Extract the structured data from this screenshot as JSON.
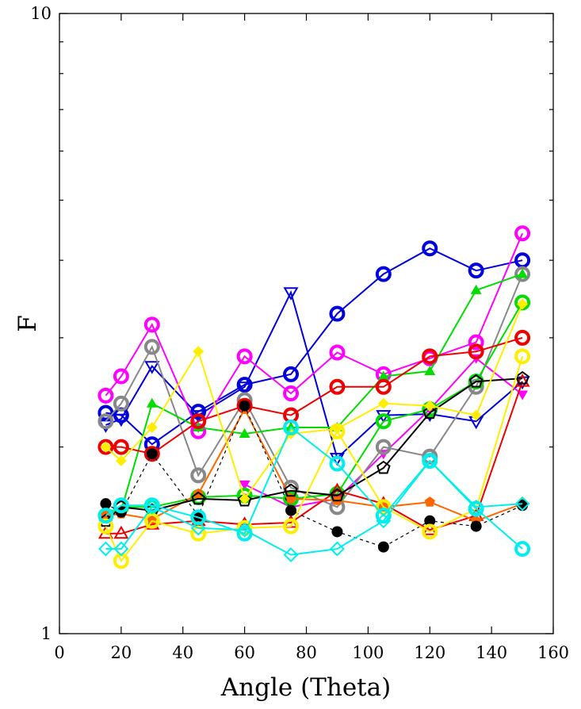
{
  "chart_data": {
    "type": "line",
    "title": "",
    "xlabel": "Angle (Theta)",
    "ylabel": "F",
    "xlim": [
      0,
      160
    ],
    "ylim": [
      1,
      10
    ],
    "yscale": "log",
    "grid": false,
    "legend": "none",
    "x_ticks": [
      "0",
      "20",
      "40",
      "60",
      "80",
      "100",
      "120",
      "140",
      "160"
    ],
    "y_ticks": [
      "1",
      "10"
    ],
    "series": [
      {
        "color": "#0000dd",
        "marker": "circle-open-thick",
        "line": "solid",
        "x": [
          15,
          20,
          30,
          45,
          60,
          75,
          90,
          105,
          120,
          135,
          150
        ],
        "y": [
          2.27,
          2.25,
          2.02,
          2.28,
          2.52,
          2.62,
          3.28,
          3.8,
          4.18,
          3.85,
          4.0
        ]
      },
      {
        "color": "#0000dd",
        "marker": "triangle-down-open",
        "line": "solid",
        "x": [
          15,
          20,
          30,
          45,
          60,
          75,
          90,
          105,
          120,
          135,
          150
        ],
        "y": [
          2.17,
          2.22,
          2.7,
          2.25,
          2.5,
          3.55,
          1.92,
          2.25,
          2.26,
          2.2,
          2.55
        ]
      },
      {
        "color": "#ff00ff",
        "marker": "circle-open-thick",
        "line": "solid",
        "x": [
          15,
          20,
          30,
          45,
          60,
          75,
          90,
          105,
          120,
          135,
          150
        ],
        "y": [
          2.42,
          2.6,
          3.15,
          2.12,
          2.8,
          2.44,
          2.84,
          2.62,
          2.78,
          2.95,
          4.42
        ]
      },
      {
        "color": "#ff00ff",
        "marker": "triangle-down-filled",
        "line": "solid",
        "x": [
          60,
          75,
          90,
          105,
          120,
          135,
          150
        ],
        "y": [
          1.74,
          1.6,
          1.65,
          1.95,
          2.3,
          2.78,
          2.43
        ]
      },
      {
        "color": "#888888",
        "marker": "circle-open-thick",
        "line": "solid",
        "x": [
          15,
          20,
          30,
          45,
          60,
          75,
          90,
          105,
          120,
          135,
          150
        ],
        "y": [
          2.2,
          2.35,
          2.9,
          1.8,
          2.38,
          1.72,
          1.6,
          2.0,
          1.93,
          2.5,
          3.8
        ]
      },
      {
        "color": "#00dd00",
        "marker": "circle-open-thick",
        "line": "solid",
        "x": [
          15,
          20,
          30,
          45,
          60,
          75,
          90,
          105,
          120,
          135,
          150
        ],
        "y": [
          1.55,
          1.6,
          1.6,
          1.66,
          1.67,
          1.65,
          1.68,
          2.2,
          2.3,
          2.55,
          3.42
        ]
      },
      {
        "color": "#00dd00",
        "marker": "triangle-up-filled",
        "line": "solid",
        "x": [
          15,
          20,
          30,
          45,
          60,
          75,
          90,
          105,
          120,
          135,
          150
        ],
        "y": [
          1.58,
          1.58,
          2.35,
          2.15,
          2.1,
          2.15,
          2.15,
          2.6,
          2.65,
          3.58,
          3.8
        ]
      },
      {
        "color": "#ee0000",
        "marker": "circle-open-thick",
        "line": "solid",
        "x": [
          15,
          20,
          30,
          45,
          60,
          75,
          90,
          105,
          120,
          135,
          150
        ],
        "y": [
          2.0,
          2.0,
          1.95,
          2.2,
          2.33,
          2.25,
          2.5,
          2.5,
          2.8,
          2.85,
          3.0
        ]
      },
      {
        "color": "#ee0000",
        "marker": "triangle-up-open",
        "line": "solid",
        "x": [
          15,
          20,
          30,
          45,
          60,
          75,
          90,
          105,
          120,
          135,
          150
        ],
        "y": [
          1.45,
          1.45,
          1.5,
          1.52,
          1.5,
          1.51,
          1.7,
          1.62,
          1.47,
          1.55,
          2.55
        ]
      },
      {
        "color": "#ff6600",
        "marker": "pentagon-filled",
        "line": "solid",
        "x": [
          15,
          20,
          30,
          45,
          60,
          75,
          90,
          105,
          120,
          135,
          150
        ],
        "y": [
          1.55,
          1.56,
          1.53,
          1.68,
          2.3,
          1.65,
          1.64,
          1.6,
          1.63,
          1.52,
          1.62
        ]
      },
      {
        "color": "#000000",
        "marker": "pentagon-open",
        "line": "solid",
        "x": [
          15,
          20,
          30,
          45,
          60,
          75,
          90,
          105,
          120,
          135,
          150
        ],
        "y": [
          1.52,
          1.6,
          1.58,
          1.65,
          1.64,
          1.7,
          1.67,
          1.85,
          2.27,
          2.55,
          2.58
        ]
      },
      {
        "color": "#000000",
        "marker": "circle-filled",
        "line": "dashed",
        "x": [
          15,
          20,
          30,
          45,
          60,
          75,
          90,
          105,
          120,
          135,
          150
        ],
        "y": [
          1.62,
          1.57,
          1.95,
          1.55,
          2.33,
          1.58,
          1.46,
          1.38,
          1.52,
          1.49,
          1.61
        ]
      },
      {
        "color": "#ffee00",
        "marker": "circle-open-thick",
        "line": "solid",
        "x": [
          15,
          20,
          30,
          45,
          60,
          75,
          90,
          105,
          120,
          135,
          150
        ],
        "y": [
          1.49,
          1.31,
          1.52,
          1.45,
          1.48,
          1.49,
          2.12,
          1.6,
          1.46,
          1.59,
          2.8
        ]
      },
      {
        "color": "#ffee00",
        "marker": "diamond-filled",
        "line": "solid",
        "x": [
          15,
          20,
          30,
          45,
          60,
          75,
          90,
          105,
          120,
          135,
          150
        ],
        "y": [
          2.0,
          1.9,
          2.15,
          2.85,
          1.65,
          2.1,
          2.14,
          2.35,
          2.33,
          2.25,
          3.4
        ]
      },
      {
        "color": "#00eeee",
        "marker": "circle-open-thick",
        "line": "solid",
        "x": [
          15,
          20,
          30,
          45,
          60,
          75,
          90,
          105,
          120,
          135,
          150
        ],
        "y": [
          1.55,
          1.61,
          1.61,
          1.54,
          1.45,
          2.15,
          1.88,
          1.55,
          1.9,
          1.59,
          1.37
        ]
      },
      {
        "color": "#00eeee",
        "marker": "diamond-open",
        "line": "solid",
        "x": [
          15,
          20,
          30,
          45,
          60,
          75,
          90,
          105,
          120,
          135,
          150
        ],
        "y": [
          1.37,
          1.37,
          1.6,
          1.48,
          1.47,
          1.34,
          1.37,
          1.52,
          1.9,
          1.6,
          1.62
        ]
      }
    ]
  }
}
